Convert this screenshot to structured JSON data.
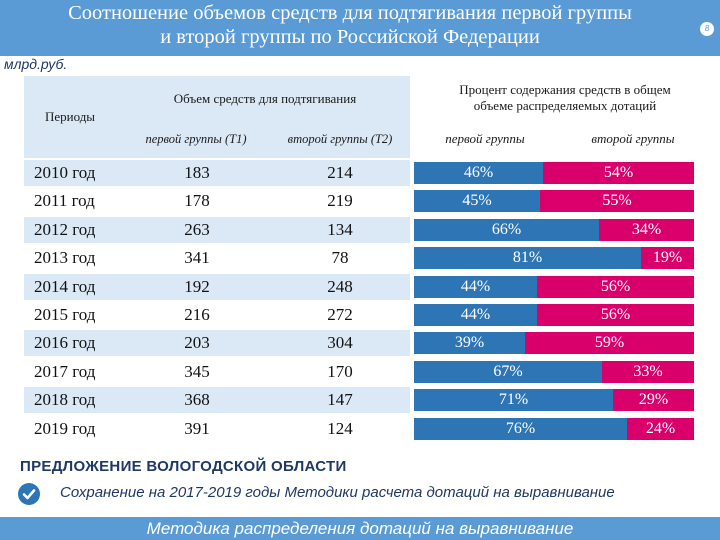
{
  "title_line1": "Соотношение объемов средств для подтягивания первой группы",
  "title_line2": "и второй группы по Российской Федерации",
  "page_number": "8",
  "unit": "млрд.руб.",
  "headers": {
    "periods": "Периоды",
    "volume": "Объем средств для подтягивания",
    "first_t1": "первой группы (Т1)",
    "second_t2": "второй группы (Т2)",
    "percent_line1": "Процент содержания средств в общем",
    "percent_line2": "объеме распределяемых дотаций",
    "first": "первой группы",
    "second": "второй группы"
  },
  "colors": {
    "first_group": "#2e75b6",
    "second_group": "#d9006c",
    "accent": "#5b9bd5"
  },
  "rows": [
    {
      "year": "2010 год",
      "t1": "183",
      "t2": "214",
      "p1": 46,
      "p2": 54,
      "p1_label": "46%",
      "p2_label": "54%"
    },
    {
      "year": "2011 год",
      "t1": "178",
      "t2": "219",
      "p1": 45,
      "p2": 55,
      "p1_label": "45%",
      "p2_label": "55%"
    },
    {
      "year": "2012 год",
      "t1": "263",
      "t2": "134",
      "p1": 66,
      "p2": 34,
      "p1_label": "66%",
      "p2_label": "34%"
    },
    {
      "year": "2013 год",
      "t1": "341",
      "t2": "78",
      "p1": 81,
      "p2": 19,
      "p1_label": "81%",
      "p2_label": "19%"
    },
    {
      "year": "2014 год",
      "t1": "192",
      "t2": "248",
      "p1": 44,
      "p2": 56,
      "p1_label": "44%",
      "p2_label": "56%"
    },
    {
      "year": "2015 год",
      "t1": "216",
      "t2": "272",
      "p1": 44,
      "p2": 56,
      "p1_label": "44%",
      "p2_label": "56%"
    },
    {
      "year": "2016 год",
      "t1": "203",
      "t2": "304",
      "p1": 39,
      "p2": 59,
      "p1_label": "39%",
      "p2_label": "59%"
    },
    {
      "year": "2017 год",
      "t1": "345",
      "t2": "170",
      "p1": 67,
      "p2": 33,
      "p1_label": "67%",
      "p2_label": "33%"
    },
    {
      "year": "2018 год",
      "t1": "368",
      "t2": "147",
      "p1": 71,
      "p2": 29,
      "p1_label": "71%",
      "p2_label": "29%"
    },
    {
      "year": "2019 год",
      "t1": "391",
      "t2": "124",
      "p1": 76,
      "p2": 24,
      "p1_label": "76%",
      "p2_label": "24%"
    }
  ],
  "proposal_title": "ПРЕДЛОЖЕНИЕ ВОЛОГОДСКОЙ ОБЛАСТИ",
  "check_icon": "check-circle-icon",
  "proposal_text": "Сохранение на 2017-2019 годы Методики расчета дотаций на выравнивание",
  "footer": "Методика распределения дотаций на выравнивание"
}
